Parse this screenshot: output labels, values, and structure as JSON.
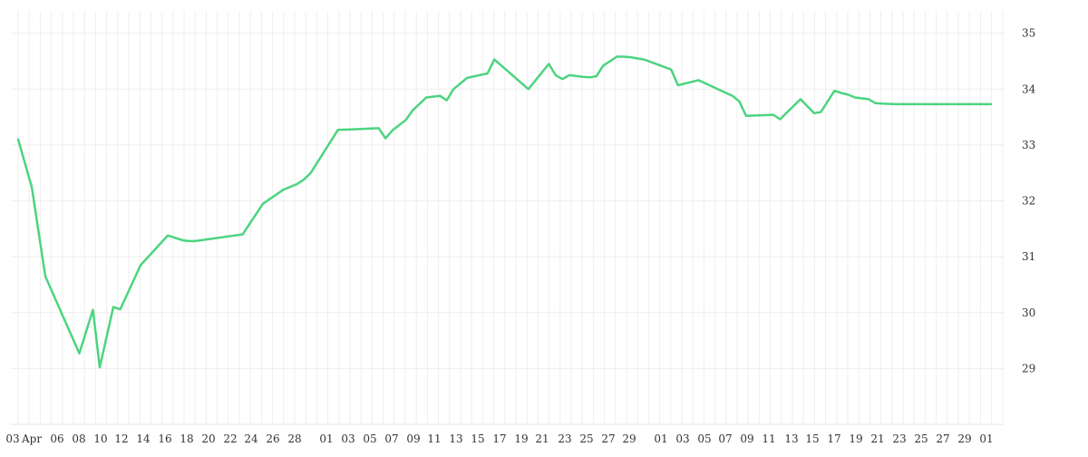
{
  "chart_data": {
    "type": "line",
    "title": "",
    "xlabel": "",
    "ylabel": "",
    "x_ticks": [
      "03",
      "Apr",
      "06",
      "08",
      "10",
      "12",
      "14",
      "16",
      "18",
      "20",
      "22",
      "24",
      "26",
      "28",
      "01",
      "03",
      "05",
      "07",
      "09",
      "11",
      "13",
      "15",
      "17",
      "19",
      "21",
      "23",
      "25",
      "27",
      "29",
      "01",
      "03",
      "05",
      "07",
      "09",
      "11",
      "13",
      "15",
      "17",
      "19",
      "21",
      "23",
      "25",
      "27",
      "29",
      "01"
    ],
    "y_ticks": [
      29,
      30,
      31,
      32,
      33,
      34,
      35
    ],
    "ylim": [
      28,
      35.4
    ],
    "grid": true,
    "series": [
      {
        "color": "#4cd47f",
        "x": [
          1,
          3,
          5,
          10,
          12,
          13,
          15,
          16,
          19,
          23,
          25,
          26,
          27,
          34,
          37,
          40,
          42,
          43,
          44,
          48,
          54,
          55,
          56,
          58,
          59,
          61,
          63,
          64,
          65,
          67,
          70,
          71,
          76,
          79,
          80,
          81,
          82,
          84,
          85,
          86,
          87,
          88,
          89,
          90,
          91,
          92,
          93,
          97,
          98,
          100,
          101,
          106,
          107,
          108,
          112,
          113,
          116,
          118,
          119,
          121,
          122,
          123,
          124,
          126,
          127,
          128,
          130,
          131,
          132,
          134,
          135,
          136,
          137,
          138,
          139,
          140,
          141,
          142,
          143,
          144
        ],
        "y": [
          33.1,
          32.25,
          30.65,
          29.27,
          30.05,
          29.02,
          30.1,
          30.06,
          30.85,
          31.38,
          31.3,
          31.28,
          31.28,
          31.4,
          31.95,
          32.2,
          32.3,
          32.38,
          32.5,
          33.27,
          33.3,
          33.12,
          33.26,
          33.45,
          33.62,
          33.85,
          33.88,
          33.8,
          34.0,
          34.2,
          34.28,
          34.53,
          34.0,
          34.45,
          34.25,
          34.18,
          34.25,
          34.22,
          34.21,
          34.23,
          34.42,
          34.5,
          34.58,
          34.58,
          34.57,
          34.55,
          34.53,
          34.35,
          34.07,
          34.13,
          34.16,
          33.88,
          33.78,
          33.52,
          33.54,
          33.46,
          33.82,
          33.57,
          33.59,
          33.97,
          33.93,
          33.9,
          33.85,
          33.82,
          33.75,
          33.74,
          33.73,
          33.73,
          33.73,
          33.73,
          33.73,
          33.73,
          33.73,
          33.73,
          33.73,
          33.73,
          33.73,
          33.73,
          33.73,
          33.73
        ]
      }
    ]
  }
}
